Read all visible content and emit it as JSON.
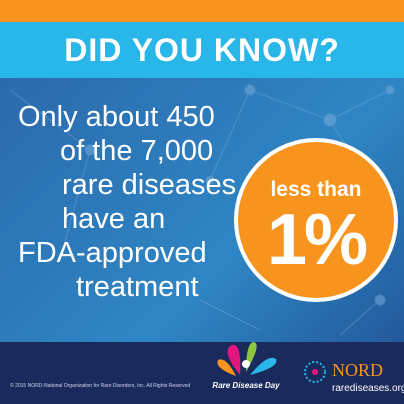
{
  "header": {
    "title": "DID YOU KNOW?"
  },
  "body": {
    "lines": [
      "Only about 450",
      "of the 7,000",
      "rare diseases",
      "have an",
      "FDA-approved",
      "treatment"
    ]
  },
  "badge": {
    "top": "less than",
    "value": "1%"
  },
  "footer": {
    "copyright": "© 2015 NORD-National Organization for Rare Disorders, Inc. All Rights Reserved",
    "event": "Rare Disease Day",
    "org": "NORD",
    "website": "rarediseases.org"
  }
}
